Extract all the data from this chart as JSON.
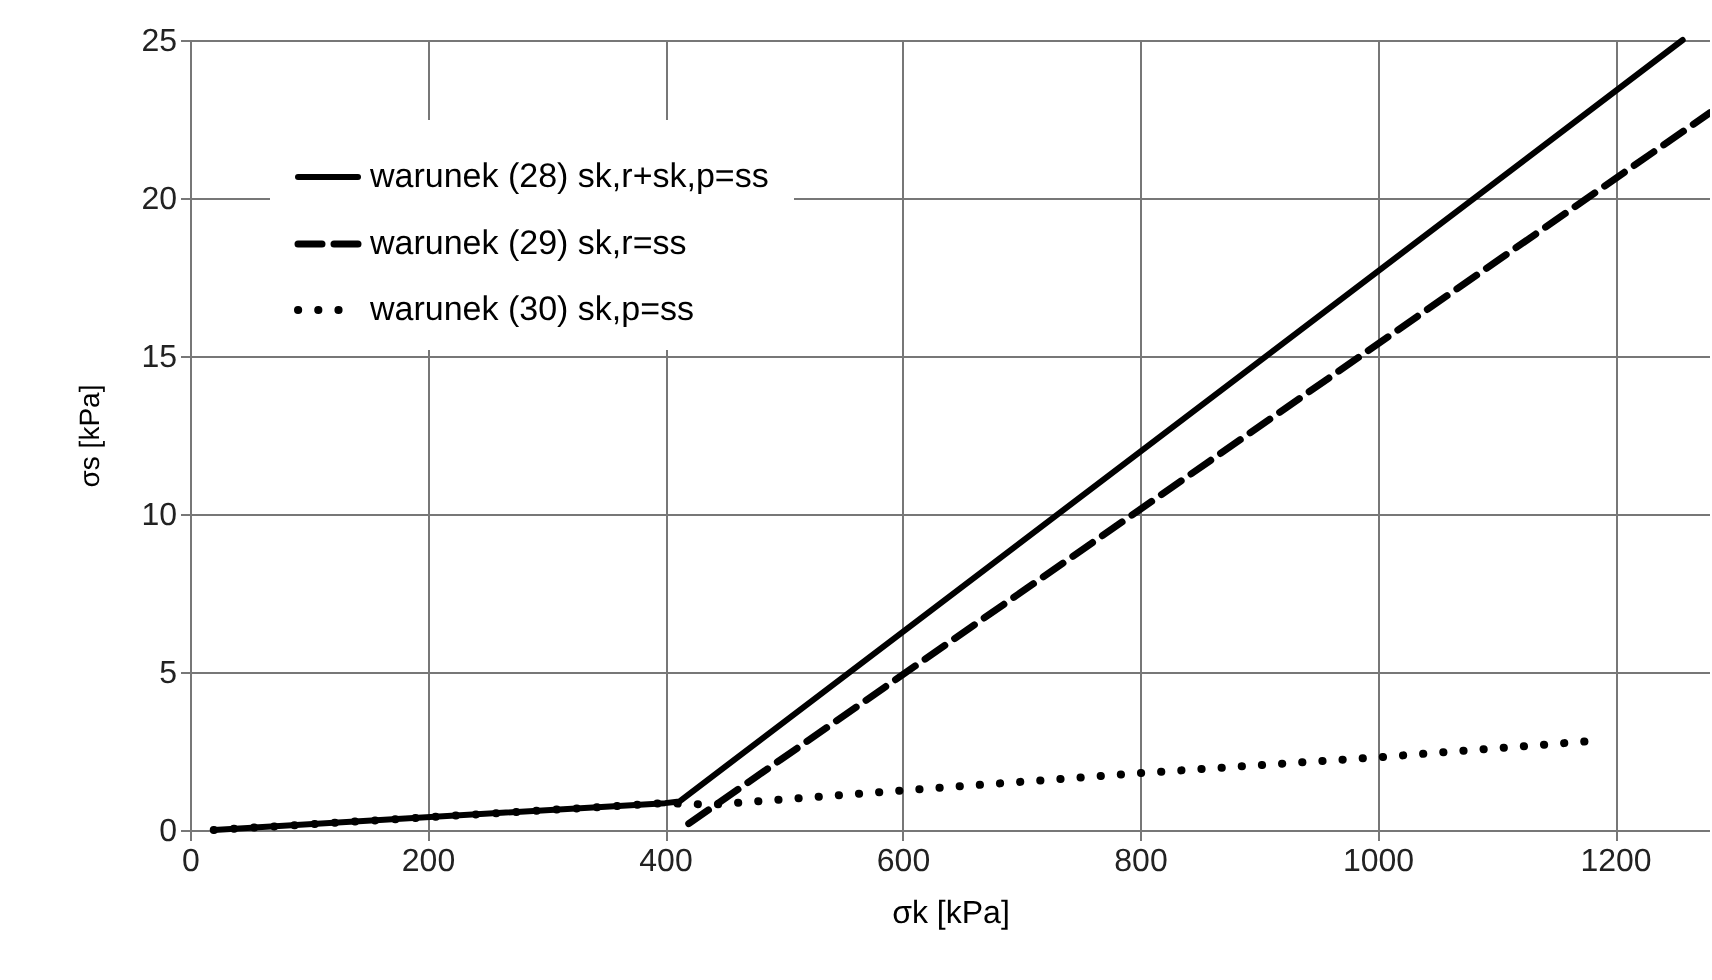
{
  "chart_data": {
    "type": "line",
    "xlabel": "σk [kPa]",
    "ylabel": "σs [kPa]",
    "xlim": [
      0,
      1280
    ],
    "ylim": [
      0,
      25
    ],
    "xticks": [
      0,
      200,
      400,
      600,
      800,
      1000,
      1200
    ],
    "yticks": [
      0,
      5,
      10,
      15,
      20,
      25
    ],
    "grid": true,
    "legend": "top left",
    "marker": "none",
    "series": [
      {
        "name": "warunek (28) sk,r+sk,p=ss",
        "color": "#000000",
        "line_style": "solid",
        "x": [
          20,
          400,
          412,
          1257
        ],
        "values": [
          0,
          0.85,
          0.9,
          25
        ]
      },
      {
        "name": "warunek (29) sk,r=ss",
        "color": "#000000",
        "line_style": "dashed",
        "x": [
          420,
          1280
        ],
        "values": [
          0.2,
          22.7
        ]
      },
      {
        "name": "warunek (30) sk,p=ss",
        "color": "#000000",
        "line_style": "dotted",
        "x": [
          20,
          400,
          440,
          600,
          800,
          1000,
          1175
        ],
        "values": [
          0,
          0.85,
          0.8,
          1.25,
          1.8,
          2.3,
          2.8
        ]
      }
    ]
  }
}
